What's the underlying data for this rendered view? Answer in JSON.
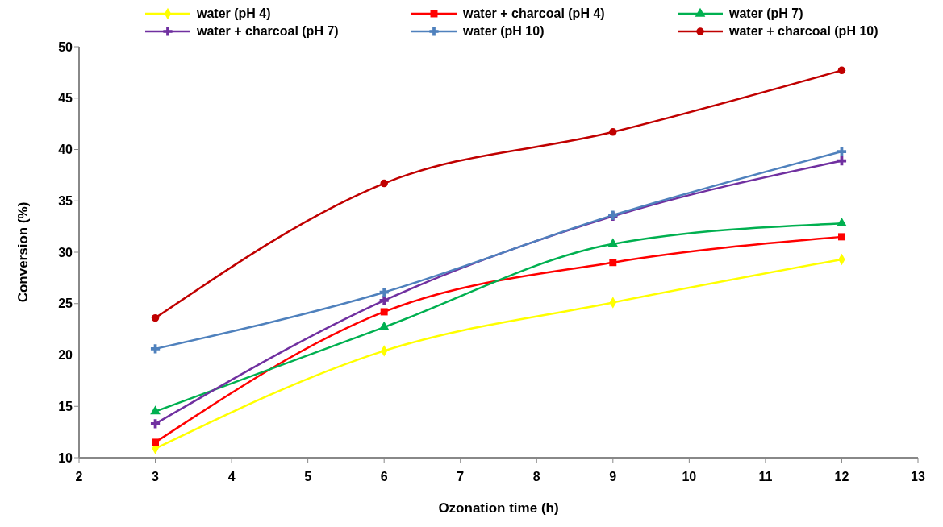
{
  "chart_data": {
    "type": "line",
    "xlabel": "Ozonation time (h)",
    "ylabel": "Conversion (%)",
    "x": [
      3,
      6,
      9,
      12
    ],
    "series": [
      {
        "name": "water (pH 4)",
        "color": "#ffff00",
        "marker": "diamond",
        "values": [
          10.9,
          20.4,
          25.1,
          29.3
        ]
      },
      {
        "name": "water + charcoal (pH 4)",
        "color": "#ff0000",
        "marker": "square",
        "values": [
          11.5,
          24.2,
          29.0,
          31.5
        ]
      },
      {
        "name": "water (pH 7)",
        "color": "#00b050",
        "marker": "triangle",
        "values": [
          14.5,
          22.7,
          30.8,
          32.8
        ]
      },
      {
        "name": "water + charcoal (pH 7)",
        "color": "#7030a0",
        "marker": "cross",
        "values": [
          13.3,
          25.3,
          33.5,
          38.9
        ]
      },
      {
        "name": "water (pH 10)",
        "color": "#4f81bd",
        "marker": "cross",
        "values": [
          20.6,
          26.1,
          33.6,
          39.8
        ]
      },
      {
        "name": "water + charcoal (pH 10)",
        "color": "#c00000",
        "marker": "circle",
        "values": [
          23.6,
          36.7,
          41.7,
          47.7
        ]
      }
    ],
    "xlim": [
      2,
      13
    ],
    "xticks": [
      2,
      3,
      4,
      5,
      6,
      7,
      8,
      9,
      10,
      11,
      12,
      13
    ],
    "ylim": [
      10,
      50
    ],
    "yticks": [
      10,
      15,
      20,
      25,
      30,
      35,
      40,
      45,
      50
    ],
    "grid": false,
    "legend": "top"
  }
}
